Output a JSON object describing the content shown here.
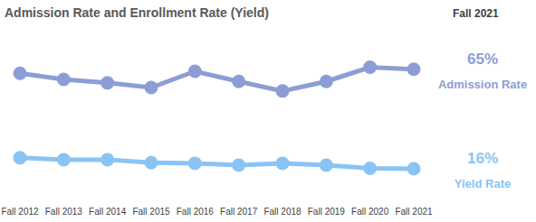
{
  "chart_data": {
    "type": "line",
    "title": "Admission Rate and Enrollment Rate (Yield)",
    "subtitle": "Fall 2021",
    "categories": [
      "Fall 2012",
      "Fall 2013",
      "Fall 2014",
      "Fall 2015",
      "Fall 2016",
      "Fall 2017",
      "Fall 2018",
      "Fall 2019",
      "Fall 2020",
      "Fall 2021"
    ],
    "series": [
      {
        "name": "Admission Rate",
        "color": "#8c9dd6",
        "marker": "circle",
        "values": [
          63,
          60,
          58.3,
          56,
          64,
          59,
          54.3,
          59,
          66,
          65
        ],
        "value_labels": [
          null,
          null,
          null,
          null,
          null,
          null,
          null,
          null,
          null,
          "65%"
        ]
      },
      {
        "name": "Yield Rate",
        "color": "#8ac4f4",
        "marker": "circle",
        "values": [
          21.4,
          20.5,
          20.5,
          19,
          18.7,
          17.8,
          18.7,
          17.8,
          16.2,
          16
        ],
        "value_labels": [
          null,
          null,
          null,
          null,
          null,
          null,
          null,
          null,
          null,
          "16%"
        ]
      }
    ],
    "ylim": [
      0,
      80
    ],
    "yticks": [
      0,
      80
    ],
    "grid": false,
    "data_labels": true,
    "tick_labels": "x"
  }
}
